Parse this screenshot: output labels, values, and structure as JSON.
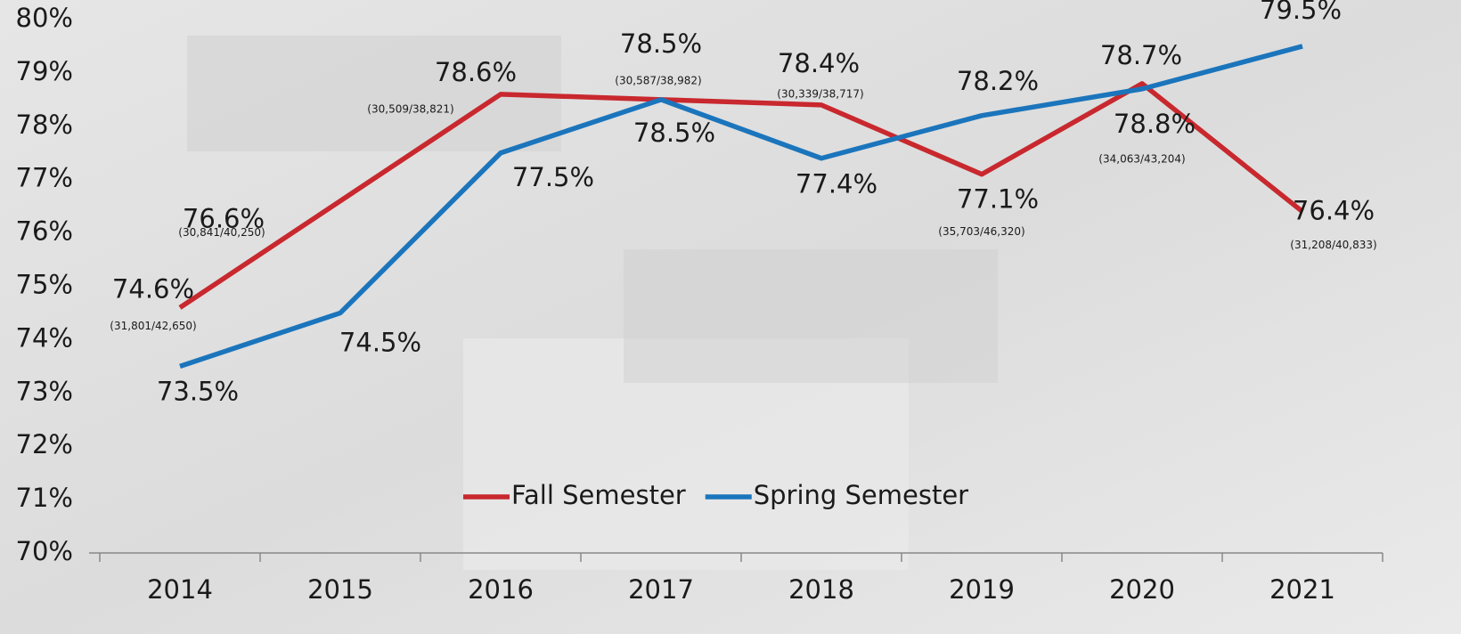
{
  "chart_data": {
    "type": "line",
    "categories": [
      "2014",
      "2015",
      "2016",
      "2017",
      "2018",
      "2019",
      "2020",
      "2021"
    ],
    "series": [
      {
        "name": "Fall Semester",
        "color": "#c8282e",
        "values": [
          74.6,
          76.6,
          78.6,
          78.5,
          78.4,
          77.1,
          78.8,
          76.4
        ],
        "value_labels": [
          "74.6%",
          "76.6%",
          "78.6%",
          "78.5%",
          "78.4%",
          "77.1%",
          "78.8%",
          "76.4%"
        ],
        "fraction_labels": [
          "(31,801/42,650)",
          "(30,841/40,250)",
          "(30,509/38,821)",
          "(30,587/38,982)",
          "(30,339/38,717)",
          "(35,703/46,320)",
          "(34,063/43,204)",
          "(31,208/40,833)"
        ]
      },
      {
        "name": "Spring Semester",
        "color": "#1b75bc",
        "values": [
          73.5,
          74.5,
          77.5,
          78.5,
          77.4,
          78.2,
          78.7,
          79.5
        ],
        "value_labels": [
          "73.5%",
          "74.5%",
          "77.5%",
          "78.5%",
          "77.4%",
          "78.2%",
          "78.7%",
          "79.5%"
        ]
      }
    ],
    "ylim": [
      70,
      80
    ],
    "yticks": [
      {
        "value": 70,
        "label": "70%"
      },
      {
        "value": 71,
        "label": "71%"
      },
      {
        "value": 72,
        "label": "72%"
      },
      {
        "value": 73,
        "label": "73%"
      },
      {
        "value": 74,
        "label": "74%"
      },
      {
        "value": 75,
        "label": "75%"
      },
      {
        "value": 76,
        "label": "76%"
      },
      {
        "value": 77,
        "label": "77%"
      },
      {
        "value": 78,
        "label": "78%"
      },
      {
        "value": 79,
        "label": "79%"
      },
      {
        "value": 80,
        "label": "80%"
      }
    ],
    "grid": false,
    "legend": "bottom"
  }
}
